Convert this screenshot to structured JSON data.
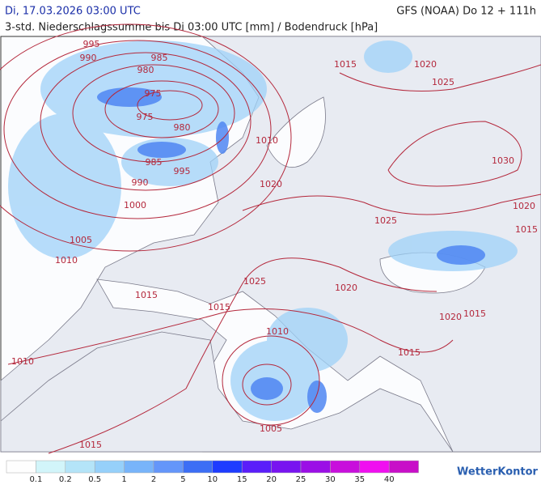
{
  "header": {
    "title": "Di, 17.03.2026 03:00 UTC",
    "model": "GFS (NOAA) Do 12 + 111h",
    "subtitle": "3-std. Niederschlagssumme bis Di 03:00 UTC [mm] / Bodendruck [hPa]"
  },
  "map": {
    "isobar_labels": [
      "995",
      "990",
      "985",
      "980",
      "975",
      "975",
      "980",
      "985",
      "995",
      "990",
      "1000",
      "1005",
      "1010",
      "1015",
      "1020",
      "1025",
      "1010",
      "1020",
      "1030",
      "1025",
      "1020",
      "1015",
      "1025",
      "1020",
      "1015",
      "1015",
      "1010",
      "1015",
      "1020",
      "1015",
      "1010",
      "1005",
      "1015"
    ]
  },
  "legend": {
    "colors": [
      "#fefefe",
      "#d2f5fa",
      "#b4e4f8",
      "#96d0fa",
      "#78b4fa",
      "#6496fa",
      "#3c6ef5",
      "#1e3cff",
      "#5a1efa",
      "#7814f0",
      "#9b0fe6",
      "#c80fdc",
      "#f00ff0",
      "#c80fc8"
    ],
    "labels": [
      "0.1",
      "0.2",
      "0.5",
      "1",
      "2",
      "5",
      "10",
      "15",
      "20",
      "25",
      "30",
      "35",
      "40"
    ]
  },
  "logo": "WetterKontor"
}
